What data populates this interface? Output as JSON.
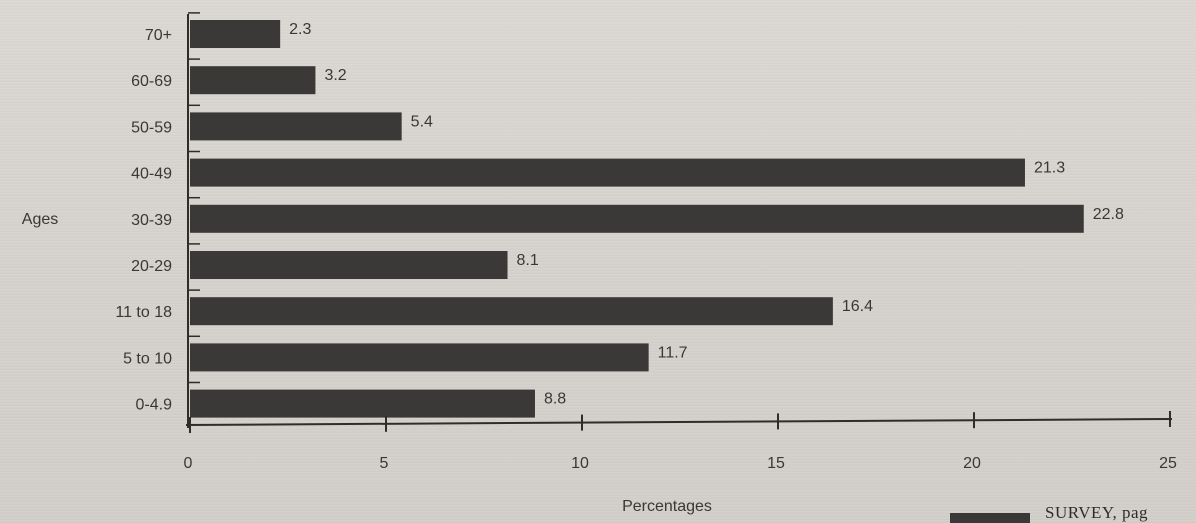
{
  "chart_data": {
    "type": "bar",
    "orientation": "horizontal",
    "categories": [
      "70+",
      "60-69",
      "50-59",
      "40-49",
      "30-39",
      "20-29",
      "11 to 18",
      "5 to 10",
      "0-4.9"
    ],
    "values": [
      2.3,
      3.2,
      5.4,
      21.3,
      22.8,
      8.1,
      16.4,
      11.7,
      8.8
    ],
    "value_labels": [
      "2.3",
      "3.2",
      "5.4",
      "21.3",
      "22.8",
      "8.1",
      "16.4",
      "11.7",
      "8.8"
    ],
    "title": "",
    "xlabel": "Percentages",
    "ylabel": "Ages",
    "xlim": [
      0,
      25
    ],
    "x_ticks": [
      0,
      5,
      10,
      15,
      20,
      25
    ],
    "x_tick_labels": [
      "0",
      "5",
      "10",
      "15",
      "20",
      "25"
    ],
    "grid": false,
    "bar_color": "#3b3937"
  },
  "caption": {
    "text": "SURVEY, pag"
  }
}
